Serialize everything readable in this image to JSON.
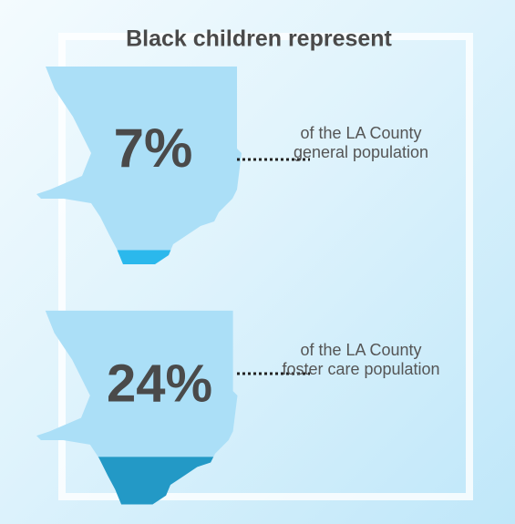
{
  "chart_data": {
    "type": "pictograph",
    "title": "Black children represent",
    "categories": [
      "of the LA County general population",
      "of the LA County foster care population"
    ],
    "values": [
      7,
      24
    ],
    "value_labels": [
      "7%",
      "24%"
    ],
    "colors": [
      "#2bb8ec",
      "#2399c6"
    ],
    "shape_color": "#abdff7"
  }
}
